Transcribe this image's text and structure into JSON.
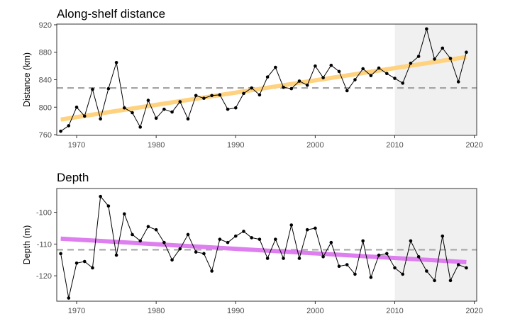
{
  "colors": {
    "distance_trend": "#ffd27f",
    "depth_trend": "#dd7fee",
    "mean_line": "#a6a6a6",
    "shade": "#f0f0f0",
    "points": "#000000"
  },
  "chart_data": [
    {
      "type": "line",
      "title": "Along-shelf distance",
      "xlabel": "",
      "ylabel": "Distance (km)",
      "xlim": [
        1967.5,
        2020.3
      ],
      "ylim": [
        759,
        921
      ],
      "xticks": [
        1970,
        1980,
        1990,
        2000,
        2010,
        2020
      ],
      "yticks": [
        760,
        800,
        840,
        880,
        920
      ],
      "shaded_period": [
        2010,
        2020
      ],
      "mean_line": 828,
      "trend": {
        "x": [
          1968,
          2019
        ],
        "y": [
          782,
          873
        ]
      },
      "series": [
        {
          "x": [
            1968,
            1969,
            1970,
            1971,
            1972,
            1973,
            1974,
            1975,
            1976,
            1977,
            1978,
            1979,
            1980,
            1981,
            1982,
            1983,
            1984,
            1985,
            1986,
            1987,
            1988,
            1989,
            1990,
            1991,
            1992,
            1993,
            1994,
            1995,
            1996,
            1997,
            1998,
            1999,
            2000,
            2001,
            2002,
            2003,
            2004,
            2005,
            2006,
            2007,
            2008,
            2009,
            2010,
            2011,
            2012,
            2013,
            2014,
            2015,
            2016,
            2017,
            2018,
            2019
          ],
          "values": [
            765,
            773,
            800,
            787,
            826,
            783,
            827,
            865,
            799,
            792,
            771,
            810,
            784,
            797,
            793,
            808,
            783,
            817,
            813,
            817,
            818,
            797,
            799,
            820,
            828,
            818,
            844,
            858,
            829,
            827,
            838,
            832,
            860,
            843,
            861,
            852,
            824,
            840,
            856,
            846,
            857,
            849,
            842,
            835,
            864,
            874,
            914,
            870,
            886,
            871,
            837,
            880
          ]
        }
      ]
    },
    {
      "type": "line",
      "title": "Depth",
      "xlabel": "",
      "ylabel": "Depth (m)",
      "xlim": [
        1967.5,
        2020.3
      ],
      "ylim": [
        -128,
        -92.5
      ],
      "xticks": [
        1970,
        1980,
        1990,
        2000,
        2010,
        2020
      ],
      "yticks": [
        -100,
        -110,
        -120
      ],
      "shaded_period": [
        2010,
        2020
      ],
      "mean_line": -111.8,
      "trend": {
        "x": [
          1968,
          2019
        ],
        "y": [
          -108.3,
          -115.7
        ]
      },
      "series": [
        {
          "x": [
            1968,
            1969,
            1970,
            1971,
            1972,
            1973,
            1974,
            1975,
            1976,
            1977,
            1978,
            1979,
            1980,
            1981,
            1982,
            1983,
            1984,
            1985,
            1986,
            1987,
            1988,
            1989,
            1990,
            1991,
            1992,
            1993,
            1994,
            1995,
            1996,
            1997,
            1998,
            1999,
            2000,
            2001,
            2002,
            2003,
            2004,
            2005,
            2006,
            2007,
            2008,
            2009,
            2010,
            2011,
            2012,
            2013,
            2014,
            2015,
            2016,
            2017,
            2018,
            2019
          ],
          "values": [
            -113,
            -127,
            -116,
            -115.5,
            -117.5,
            -95,
            -98,
            -113.5,
            -100.5,
            -107,
            -109,
            -104.5,
            -105.5,
            -109.5,
            -115,
            -111.5,
            -107,
            -112.5,
            -113,
            -118.5,
            -108.5,
            -109.5,
            -107.5,
            -106,
            -108,
            -108.5,
            -114.5,
            -108.5,
            -114.5,
            -104,
            -114.5,
            -105.5,
            -105,
            -114,
            -109.5,
            -117,
            -116.5,
            -119.5,
            -109,
            -120.5,
            -113.5,
            -113,
            -117.5,
            -119.5,
            -109,
            -114,
            -118.5,
            -121.5,
            -107.5,
            -121.5,
            -116.5,
            -117.5
          ]
        }
      ]
    }
  ]
}
